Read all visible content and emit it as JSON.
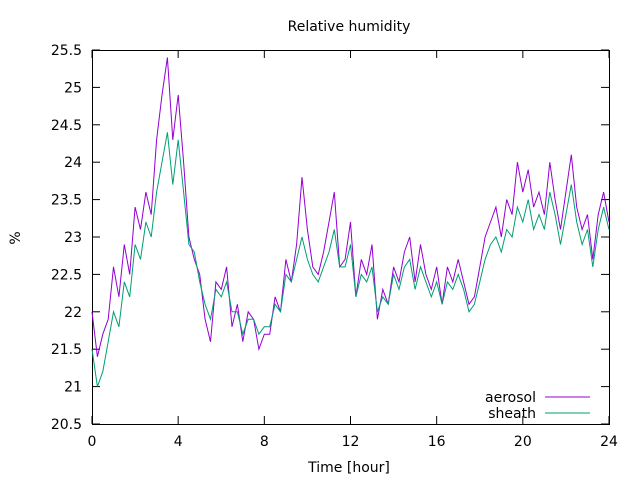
{
  "chart_data": {
    "type": "line",
    "title": "Relative humidity",
    "xlabel": "Time [hour]",
    "ylabel": "%",
    "xlim": [
      0,
      24
    ],
    "ylim": [
      20.5,
      25.5
    ],
    "x_ticks": [
      0,
      4,
      8,
      12,
      16,
      20,
      24
    ],
    "y_ticks": [
      20.5,
      21,
      21.5,
      22,
      22.5,
      23,
      23.5,
      24,
      24.5,
      25,
      25.5
    ],
    "legend_position": "bottom-right",
    "grid": false,
    "series": [
      {
        "name": "aerosol",
        "color": "#9400d3",
        "x": [
          0,
          0.25,
          0.5,
          0.75,
          1,
          1.25,
          1.5,
          1.75,
          2,
          2.25,
          2.5,
          2.75,
          3,
          3.25,
          3.5,
          3.75,
          4,
          4.25,
          4.5,
          4.75,
          5,
          5.25,
          5.5,
          5.75,
          6,
          6.25,
          6.5,
          6.75,
          7,
          7.25,
          7.5,
          7.75,
          8,
          8.25,
          8.5,
          8.75,
          9,
          9.25,
          9.5,
          9.75,
          10,
          10.25,
          10.5,
          10.75,
          11,
          11.25,
          11.5,
          11.75,
          12,
          12.25,
          12.5,
          12.75,
          13,
          13.25,
          13.5,
          13.75,
          14,
          14.25,
          14.5,
          14.75,
          15,
          15.25,
          15.5,
          15.75,
          16,
          16.25,
          16.5,
          16.75,
          17,
          17.25,
          17.5,
          17.75,
          18,
          18.25,
          18.5,
          18.75,
          19,
          19.25,
          19.5,
          19.75,
          20,
          20.25,
          20.5,
          20.75,
          21,
          21.25,
          21.5,
          21.75,
          22,
          22.25,
          22.5,
          22.75,
          23,
          23.25,
          23.5,
          23.75,
          24
        ],
        "y": [
          22.0,
          21.4,
          21.7,
          21.9,
          22.6,
          22.2,
          22.9,
          22.5,
          23.4,
          23.1,
          23.6,
          23.3,
          24.3,
          24.9,
          25.4,
          24.3,
          24.9,
          24.0,
          23.0,
          22.7,
          22.5,
          21.9,
          21.6,
          22.4,
          22.3,
          22.6,
          21.8,
          22.1,
          21.6,
          22.0,
          21.9,
          21.5,
          21.7,
          21.7,
          22.2,
          22.0,
          22.7,
          22.4,
          22.9,
          23.8,
          23.1,
          22.6,
          22.5,
          22.8,
          23.2,
          23.6,
          22.6,
          22.7,
          23.2,
          22.2,
          22.7,
          22.5,
          22.9,
          21.9,
          22.3,
          22.1,
          22.6,
          22.4,
          22.8,
          23.0,
          22.4,
          22.9,
          22.5,
          22.3,
          22.6,
          22.1,
          22.6,
          22.4,
          22.7,
          22.4,
          22.1,
          22.2,
          22.6,
          23.0,
          23.2,
          23.4,
          23.0,
          23.5,
          23.3,
          24.0,
          23.6,
          23.9,
          23.4,
          23.6,
          23.3,
          24.0,
          23.5,
          23.1,
          23.6,
          24.1,
          23.4,
          23.1,
          23.3,
          22.7,
          23.3,
          23.6,
          23.2
        ]
      },
      {
        "name": "sheath",
        "color": "#009e73",
        "x": [
          0,
          0.25,
          0.5,
          0.75,
          1,
          1.25,
          1.5,
          1.75,
          2,
          2.25,
          2.5,
          2.75,
          3,
          3.25,
          3.5,
          3.75,
          4,
          4.25,
          4.5,
          4.75,
          5,
          5.25,
          5.5,
          5.75,
          6,
          6.25,
          6.5,
          6.75,
          7,
          7.25,
          7.5,
          7.75,
          8,
          8.25,
          8.5,
          8.75,
          9,
          9.25,
          9.5,
          9.75,
          10,
          10.25,
          10.5,
          10.75,
          11,
          11.25,
          11.5,
          11.75,
          12,
          12.25,
          12.5,
          12.75,
          13,
          13.25,
          13.5,
          13.75,
          14,
          14.25,
          14.5,
          14.75,
          15,
          15.25,
          15.5,
          15.75,
          16,
          16.25,
          16.5,
          16.75,
          17,
          17.25,
          17.5,
          17.75,
          18,
          18.25,
          18.5,
          18.75,
          19,
          19.25,
          19.5,
          19.75,
          20,
          20.25,
          20.5,
          20.75,
          21,
          21.25,
          21.5,
          21.75,
          22,
          22.25,
          22.5,
          22.75,
          23,
          23.25,
          23.5,
          23.75,
          24
        ],
        "y": [
          21.5,
          21.0,
          21.2,
          21.6,
          22.0,
          21.8,
          22.4,
          22.2,
          22.9,
          22.7,
          23.2,
          23.0,
          23.6,
          24.0,
          24.4,
          23.7,
          24.3,
          23.6,
          22.9,
          22.8,
          22.4,
          22.1,
          21.9,
          22.3,
          22.2,
          22.4,
          22.0,
          22.0,
          21.7,
          21.9,
          21.9,
          21.7,
          21.8,
          21.8,
          22.1,
          22.0,
          22.5,
          22.4,
          22.7,
          23.0,
          22.7,
          22.5,
          22.4,
          22.6,
          22.8,
          23.1,
          22.6,
          22.6,
          22.9,
          22.2,
          22.5,
          22.4,
          22.6,
          22.0,
          22.2,
          22.1,
          22.5,
          22.3,
          22.6,
          22.7,
          22.3,
          22.6,
          22.4,
          22.2,
          22.4,
          22.1,
          22.4,
          22.3,
          22.5,
          22.3,
          22.0,
          22.1,
          22.4,
          22.7,
          22.9,
          23.0,
          22.8,
          23.1,
          23.0,
          23.4,
          23.2,
          23.5,
          23.1,
          23.3,
          23.1,
          23.6,
          23.3,
          22.9,
          23.3,
          23.7,
          23.2,
          22.9,
          23.1,
          22.6,
          23.1,
          23.4,
          23.1
        ]
      }
    ]
  }
}
